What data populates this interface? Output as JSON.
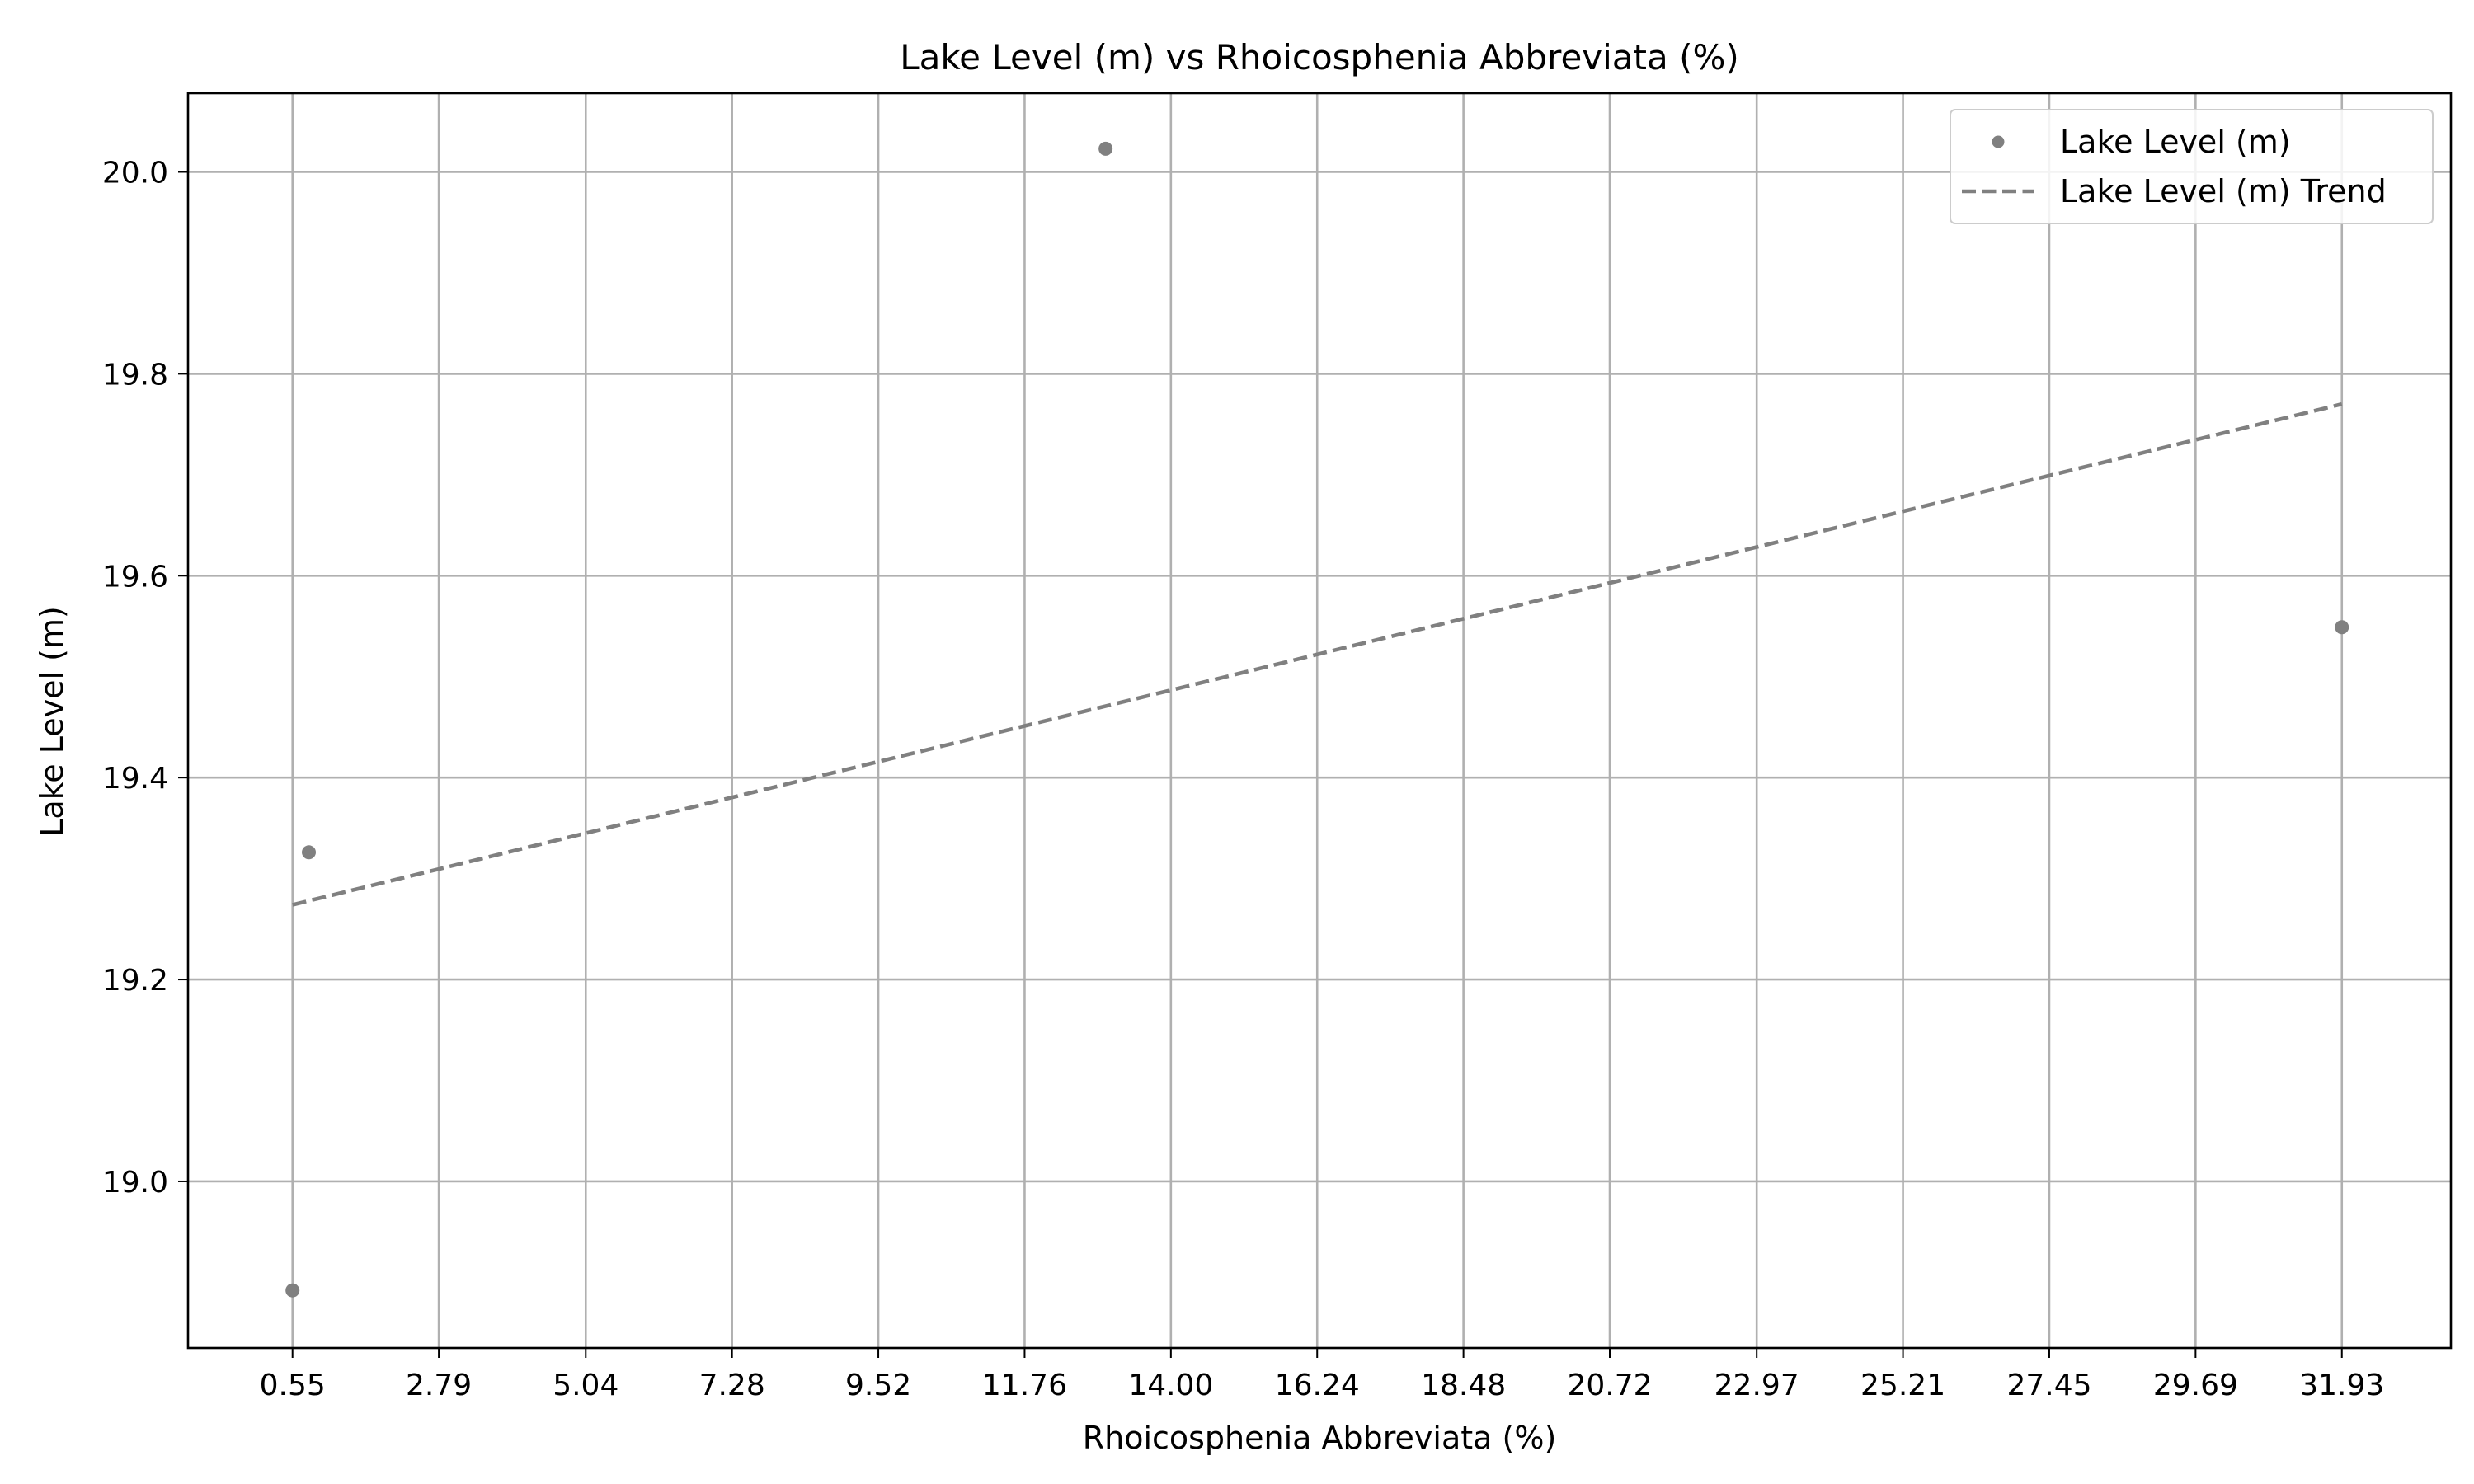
{
  "chart_data": {
    "type": "scatter",
    "title": "Lake Level (m) vs Rhoicosphenia Abbreviata (%)",
    "xlabel": "Rhoicosphenia Abbreviata (%)",
    "ylabel": "Lake Level (m)",
    "xlim": [
      -1.05,
      33.6
    ],
    "ylim": [
      18.835,
      20.078
    ],
    "x_ticks": [
      "0.55",
      "2.79",
      "5.04",
      "7.28",
      "9.52",
      "11.76",
      "14.00",
      "16.24",
      "18.48",
      "20.72",
      "22.97",
      "25.21",
      "27.45",
      "29.69",
      "31.93"
    ],
    "y_ticks": [
      "19.0",
      "19.2",
      "19.4",
      "19.6",
      "19.8",
      "20.0"
    ],
    "grid": true,
    "legend_position": "top-right",
    "series": [
      {
        "name": "Lake Level (m)",
        "type": "scatter",
        "color": "#808080",
        "x": [
          0.55,
          0.8,
          13.0,
          31.93
        ],
        "y": [
          18.892,
          19.326,
          20.023,
          19.549
        ]
      },
      {
        "name": "Lake Level (m) Trend",
        "type": "line",
        "style": "dashed",
        "color": "#808080",
        "x": [
          0.55,
          31.93
        ],
        "y": [
          19.274,
          19.77
        ]
      }
    ]
  }
}
